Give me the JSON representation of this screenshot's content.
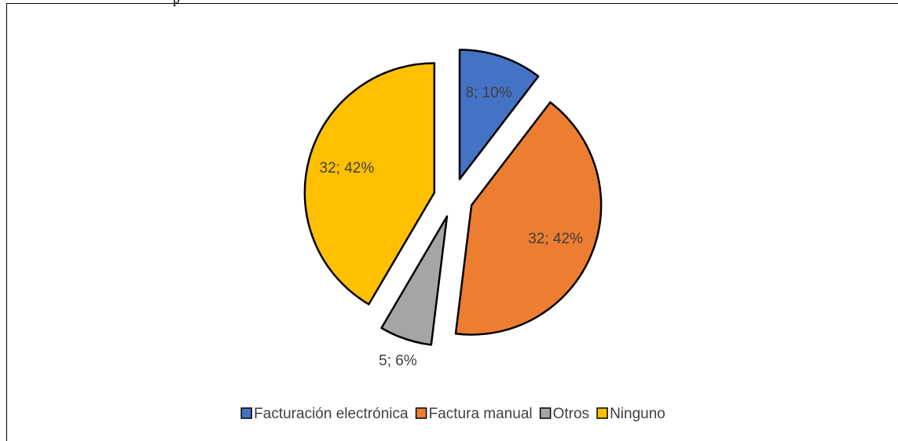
{
  "header_text": "p",
  "chart_data": {
    "type": "pie",
    "categories": [
      "Facturación electrónica",
      "Factura manual",
      "Otros",
      "Ninguno"
    ],
    "values": [
      8,
      32,
      5,
      32
    ],
    "value_labels": [
      "8; 10%",
      "32; 42%",
      "5; 6%",
      "32; 42%"
    ],
    "colors": [
      "#4472c4",
      "#ed7d31",
      "#a5a5a5",
      "#ffc000"
    ],
    "legend": "bottom"
  }
}
